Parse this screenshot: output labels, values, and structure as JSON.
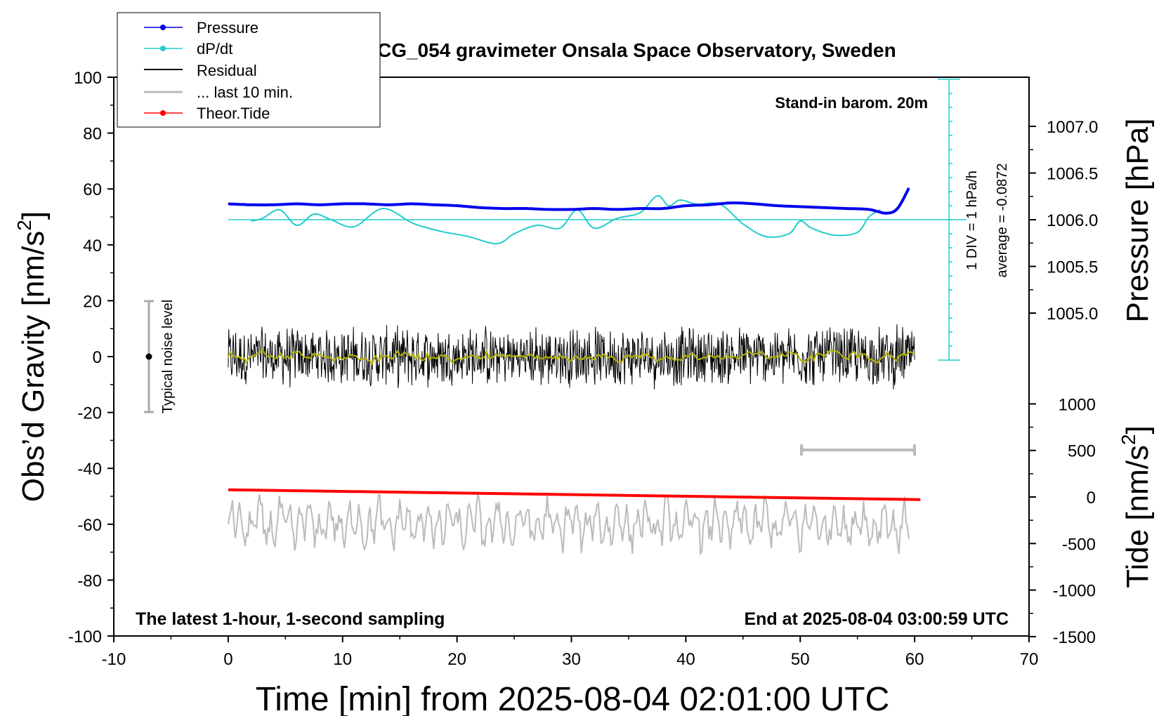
{
  "chart_data": {
    "type": "line",
    "title": "SCG_054 gravimeter Onsala Space Observatory, Sweden",
    "xlabel": "Time [min] from 2025-08-04 02:01:00 UTC",
    "xlim": [
      -10,
      70
    ],
    "xticks": [
      "-10",
      "0",
      "10",
      "20",
      "30",
      "40",
      "50",
      "60",
      "70"
    ],
    "ylabel_left": "Obs’d Gravity [nm/s",
    "ylabel_left_sup": "2",
    "ylabel_left_end": "]",
    "ylim_left": [
      -100,
      100
    ],
    "yticks_left": [
      "100",
      "80",
      "60",
      "40",
      "20",
      "0",
      "-20",
      "-40",
      "-60",
      "-80",
      "-100"
    ],
    "ylabel_pressure": "Pressure [hPa]",
    "yticks_pressure": [
      "1007.0",
      "1006.5",
      "1006.0",
      "1005.5",
      "1005.0"
    ],
    "ylabel_tide": "Tide [nm/s",
    "ylabel_tide_sup": "2",
    "ylabel_tide_end": "]",
    "yticks_tide": [
      "1000",
      "500",
      "0",
      "-500",
      "-1000",
      "-1500"
    ],
    "annotations": {
      "barometer": "Stand-in barom. 20m",
      "div": "1 DIV = 1 hPa/h",
      "average": "average = -0.0872",
      "noise": "Typical noise level",
      "bottom_left": "The latest 1-hour, 1-second sampling",
      "bottom_right": "End at 2025-08-04 03:00:59 UTC"
    },
    "legend": {
      "position": "top-left",
      "entries": [
        "Pressure",
        "dP/dt",
        "Residual",
        "... last 10 min.",
        "Theor.Tide"
      ]
    },
    "colors": {
      "pressure": "#0000ee",
      "dpdt": "#22cccc",
      "residual": "#000000",
      "residual_smooth": "#b5b500",
      "last10": "#bbbbbb",
      "tide": "#ff0000"
    },
    "series": [
      {
        "name": "Pressure",
        "units": "hPa",
        "x": [
          0,
          2,
          4,
          6,
          8,
          10,
          12,
          14,
          16,
          18,
          20,
          22,
          24,
          26,
          28,
          30,
          32,
          34,
          36,
          38,
          40,
          42,
          44,
          46,
          48,
          50,
          52,
          54,
          56,
          57.5,
          58.5,
          59.5
        ],
        "values": [
          1006.17,
          1006.16,
          1006.16,
          1006.17,
          1006.16,
          1006.17,
          1006.17,
          1006.16,
          1006.17,
          1006.16,
          1006.15,
          1006.13,
          1006.12,
          1006.12,
          1006.11,
          1006.11,
          1006.12,
          1006.11,
          1006.12,
          1006.12,
          1006.15,
          1006.16,
          1006.18,
          1006.17,
          1006.15,
          1006.14,
          1006.13,
          1006.12,
          1006.11,
          1006.07,
          1006.12,
          1006.34
        ]
      },
      {
        "name": "dP/dt",
        "units": "hPa/h",
        "x": [
          2,
          3,
          4.5,
          6,
          7.5,
          9,
          11,
          13.5,
          16,
          17.5,
          19,
          21,
          23.5,
          25,
          27,
          29,
          30.5,
          32,
          34,
          36,
          37.5,
          38.5,
          39.5,
          41,
          43,
          45,
          47,
          49,
          50,
          51,
          53,
          55,
          56,
          57
        ],
        "values": [
          -0.1,
          0.1,
          0.7,
          -0.4,
          0.4,
          0,
          -0.5,
          0.8,
          -0.2,
          -0.6,
          -0.9,
          -1.2,
          -1.7,
          -1.0,
          -0.4,
          -0.6,
          0.7,
          -0.6,
          0.1,
          0.5,
          1.7,
          1.0,
          1.4,
          1.1,
          1.1,
          -0.3,
          -1.2,
          -1.0,
          -0.1,
          -0.6,
          -1.1,
          -0.9,
          0.2,
          0.7
        ]
      },
      {
        "name": "Residual",
        "units": "nm/s2",
        "note": "1-second samples, noise amplitude approx. ±15 nm/s2 around 0"
      },
      {
        "name": "... last 10 min.",
        "units": "nm/s2",
        "note": "grey trace around -60 nm/s2, amplitude approx. ±10"
      },
      {
        "name": "Theor.Tide",
        "units": "nm/s2",
        "x": [
          0,
          60.5
        ],
        "values": [
          78,
          -28
        ]
      }
    ]
  }
}
